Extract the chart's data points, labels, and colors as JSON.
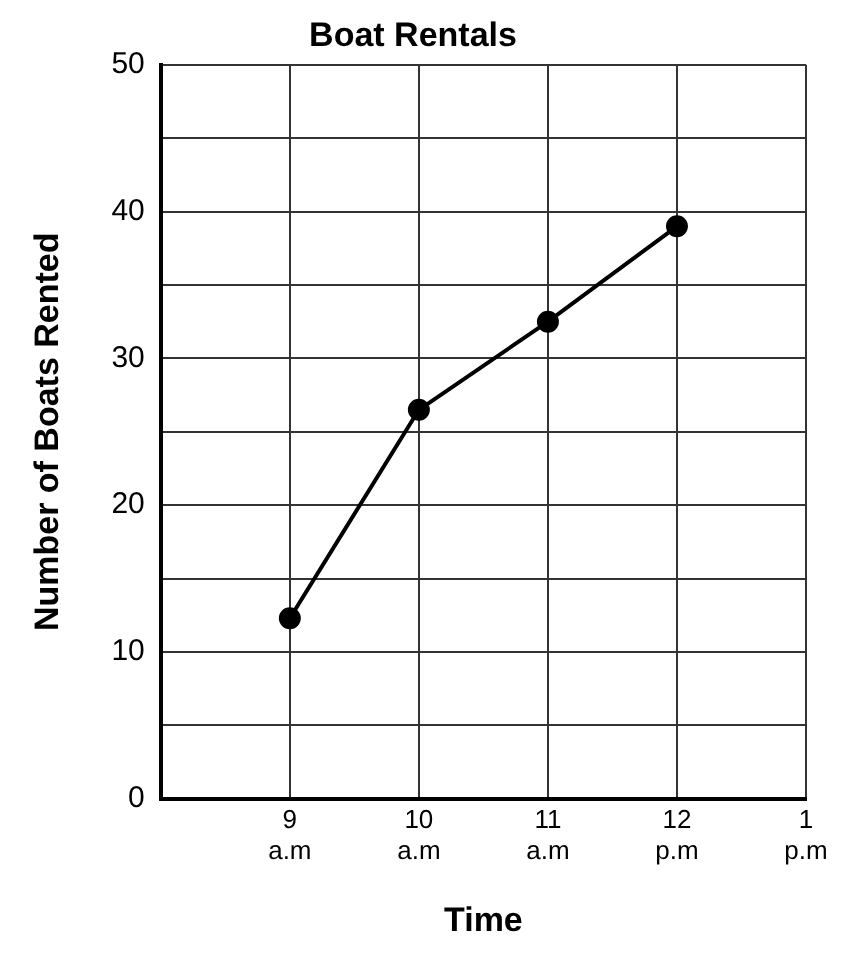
{
  "chart_data": {
    "type": "line",
    "title": "Boat Rentals",
    "xlabel": "Time",
    "ylabel": "Number of Boats Rented",
    "categories": [
      null,
      "9 a.m",
      "10 a.m",
      "11 a.m",
      "12 p.m",
      "1 p.m"
    ],
    "series": [
      {
        "color": "#000000",
        "values": [
          null,
          12.3,
          26.5,
          32.5,
          39,
          null
        ]
      }
    ],
    "ylim": [
      0,
      50
    ],
    "yticks": [
      0,
      {
        "value": 5,
        "label": null
      },
      10,
      {
        "value": 15,
        "label": null
      },
      20,
      {
        "value": 25,
        "label": null
      },
      30,
      {
        "value": 35,
        "label": null
      },
      40,
      {
        "value": 45,
        "label": null
      },
      50
    ],
    "grid": true,
    "legend": false,
    "marker": "circle",
    "line_style": "solid"
  }
}
